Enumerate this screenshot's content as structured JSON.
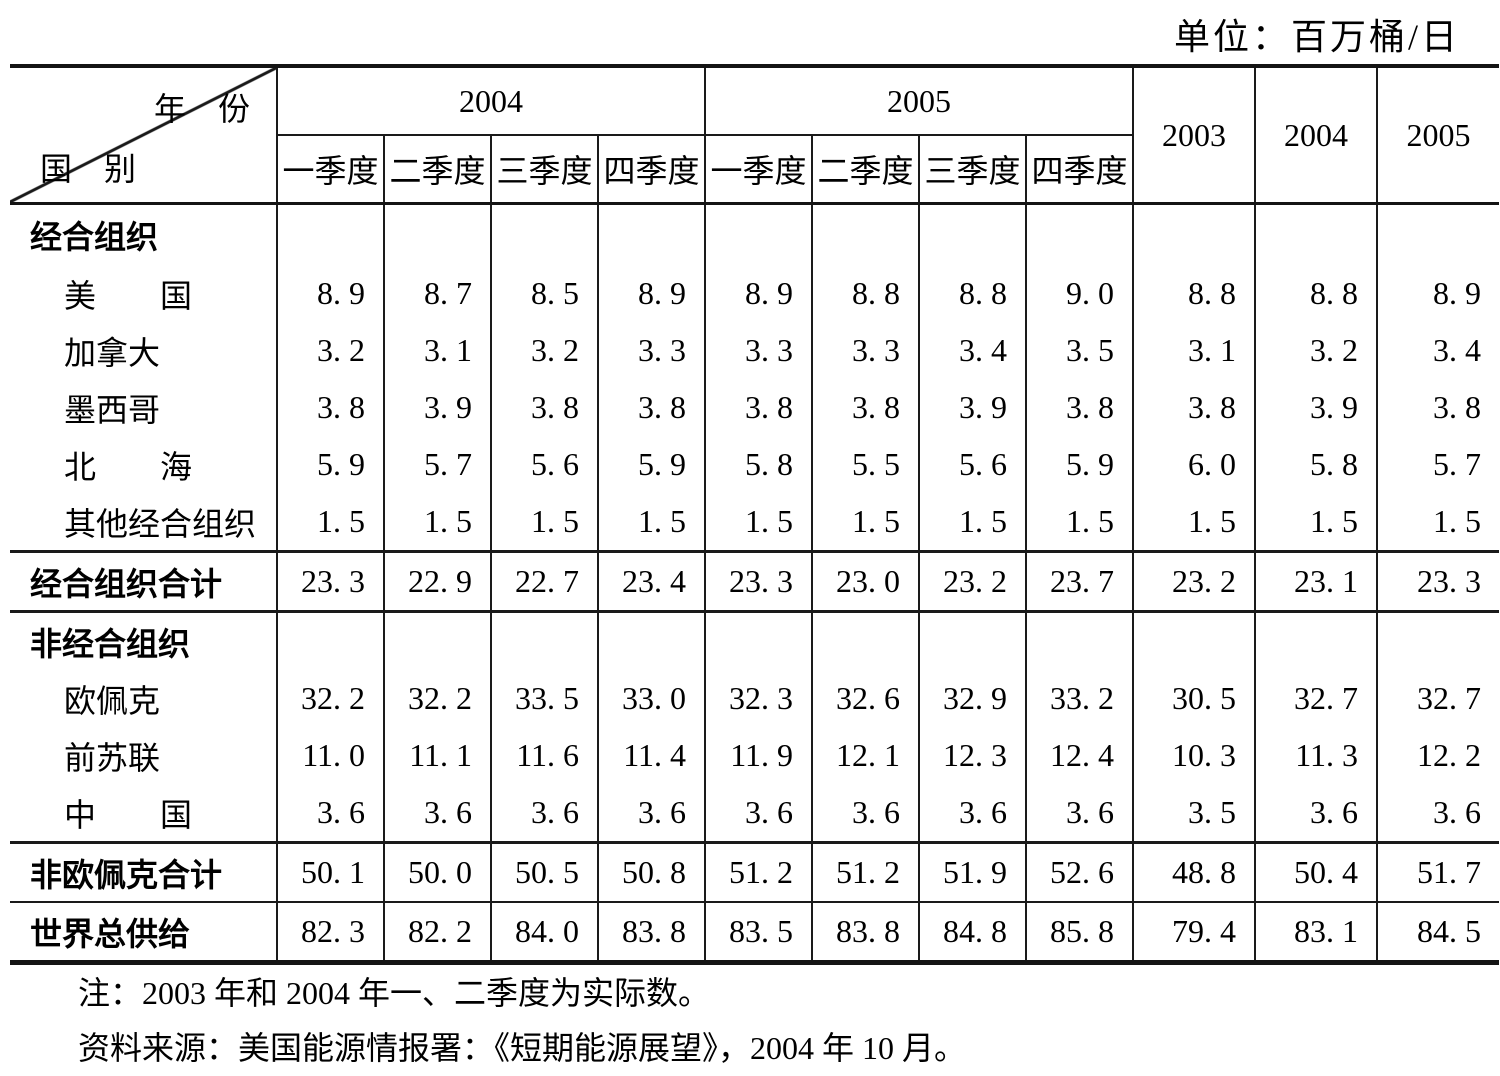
{
  "unit_label": "单位：百万桶/日",
  "table": {
    "corner": {
      "top_right": "年　份",
      "bottom_left": "国　别"
    },
    "col_groups": [
      {
        "label": "2004"
      },
      {
        "label": "2005"
      }
    ],
    "quarter_headers": [
      "一季度",
      "二季度",
      "三季度",
      "四季度",
      "一季度",
      "二季度",
      "三季度",
      "四季度"
    ],
    "annual_headers": [
      "2003",
      "2004",
      "2005"
    ],
    "rows": [
      {
        "label": "经合组织",
        "bold": true,
        "indent": false,
        "sep": "",
        "values": [
          "",
          "",
          "",
          "",
          "",
          "",
          "",
          "",
          "",
          "",
          ""
        ]
      },
      {
        "label": "美　　国",
        "bold": false,
        "indent": true,
        "sep": "",
        "values": [
          "8.9",
          "8.7",
          "8.5",
          "8.9",
          "8.9",
          "8.8",
          "8.8",
          "9.0",
          "8.8",
          "8.8",
          "8.9"
        ]
      },
      {
        "label": "加拿大",
        "bold": false,
        "indent": true,
        "sep": "",
        "values": [
          "3.2",
          "3.1",
          "3.2",
          "3.3",
          "3.3",
          "3.3",
          "3.4",
          "3.5",
          "3.1",
          "3.2",
          "3.4"
        ]
      },
      {
        "label": "墨西哥",
        "bold": false,
        "indent": true,
        "sep": "",
        "values": [
          "3.8",
          "3.9",
          "3.8",
          "3.8",
          "3.8",
          "3.8",
          "3.9",
          "3.8",
          "3.8",
          "3.9",
          "3.8"
        ]
      },
      {
        "label": "北　　海",
        "bold": false,
        "indent": true,
        "sep": "",
        "values": [
          "5.9",
          "5.7",
          "5.6",
          "5.9",
          "5.8",
          "5.5",
          "5.6",
          "5.9",
          "6.0",
          "5.8",
          "5.7"
        ]
      },
      {
        "label": "其他经合组织",
        "bold": false,
        "indent": true,
        "sep": "",
        "values": [
          "1.5",
          "1.5",
          "1.5",
          "1.5",
          "1.5",
          "1.5",
          "1.5",
          "1.5",
          "1.5",
          "1.5",
          "1.5"
        ]
      },
      {
        "label": "经合组织合计",
        "bold": true,
        "indent": false,
        "sep": "3",
        "values": [
          "23.3",
          "22.9",
          "22.7",
          "23.4",
          "23.3",
          "23.0",
          "23.2",
          "23.7",
          "23.2",
          "23.1",
          "23.3"
        ]
      },
      {
        "label": "非经合组织",
        "bold": true,
        "indent": false,
        "sep": "3",
        "values": [
          "",
          "",
          "",
          "",
          "",
          "",
          "",
          "",
          "",
          "",
          ""
        ]
      },
      {
        "label": "欧佩克",
        "bold": false,
        "indent": true,
        "sep": "",
        "values": [
          "32.2",
          "32.2",
          "33.5",
          "33.0",
          "32.3",
          "32.6",
          "32.9",
          "33.2",
          "30.5",
          "32.7",
          "32.7"
        ]
      },
      {
        "label": "前苏联",
        "bold": false,
        "indent": true,
        "sep": "",
        "values": [
          "11.0",
          "11.1",
          "11.6",
          "11.4",
          "11.9",
          "12.1",
          "12.3",
          "12.4",
          "10.3",
          "11.3",
          "12.2"
        ]
      },
      {
        "label": "中　　国",
        "bold": false,
        "indent": true,
        "sep": "",
        "values": [
          "3.6",
          "3.6",
          "3.6",
          "3.6",
          "3.6",
          "3.6",
          "3.6",
          "3.6",
          "3.5",
          "3.6",
          "3.6"
        ]
      },
      {
        "label": "非欧佩克合计",
        "bold": true,
        "indent": false,
        "sep": "3",
        "values": [
          "50.1",
          "50.0",
          "50.5",
          "50.8",
          "51.2",
          "51.2",
          "51.9",
          "52.6",
          "48.8",
          "50.4",
          "51.7"
        ]
      },
      {
        "label": "世界总供给",
        "bold": true,
        "indent": false,
        "sep": "2",
        "values": [
          "82.3",
          "82.2",
          "84.0",
          "83.8",
          "83.5",
          "83.8",
          "84.8",
          "85.8",
          "79.4",
          "83.1",
          "84.5"
        ]
      }
    ]
  },
  "notes": [
    "注：2003 年和 2004 年一、二季度为实际数。",
    "资料来源：美国能源情报署：《短期能源展望》，2004 年 10 月。"
  ]
}
